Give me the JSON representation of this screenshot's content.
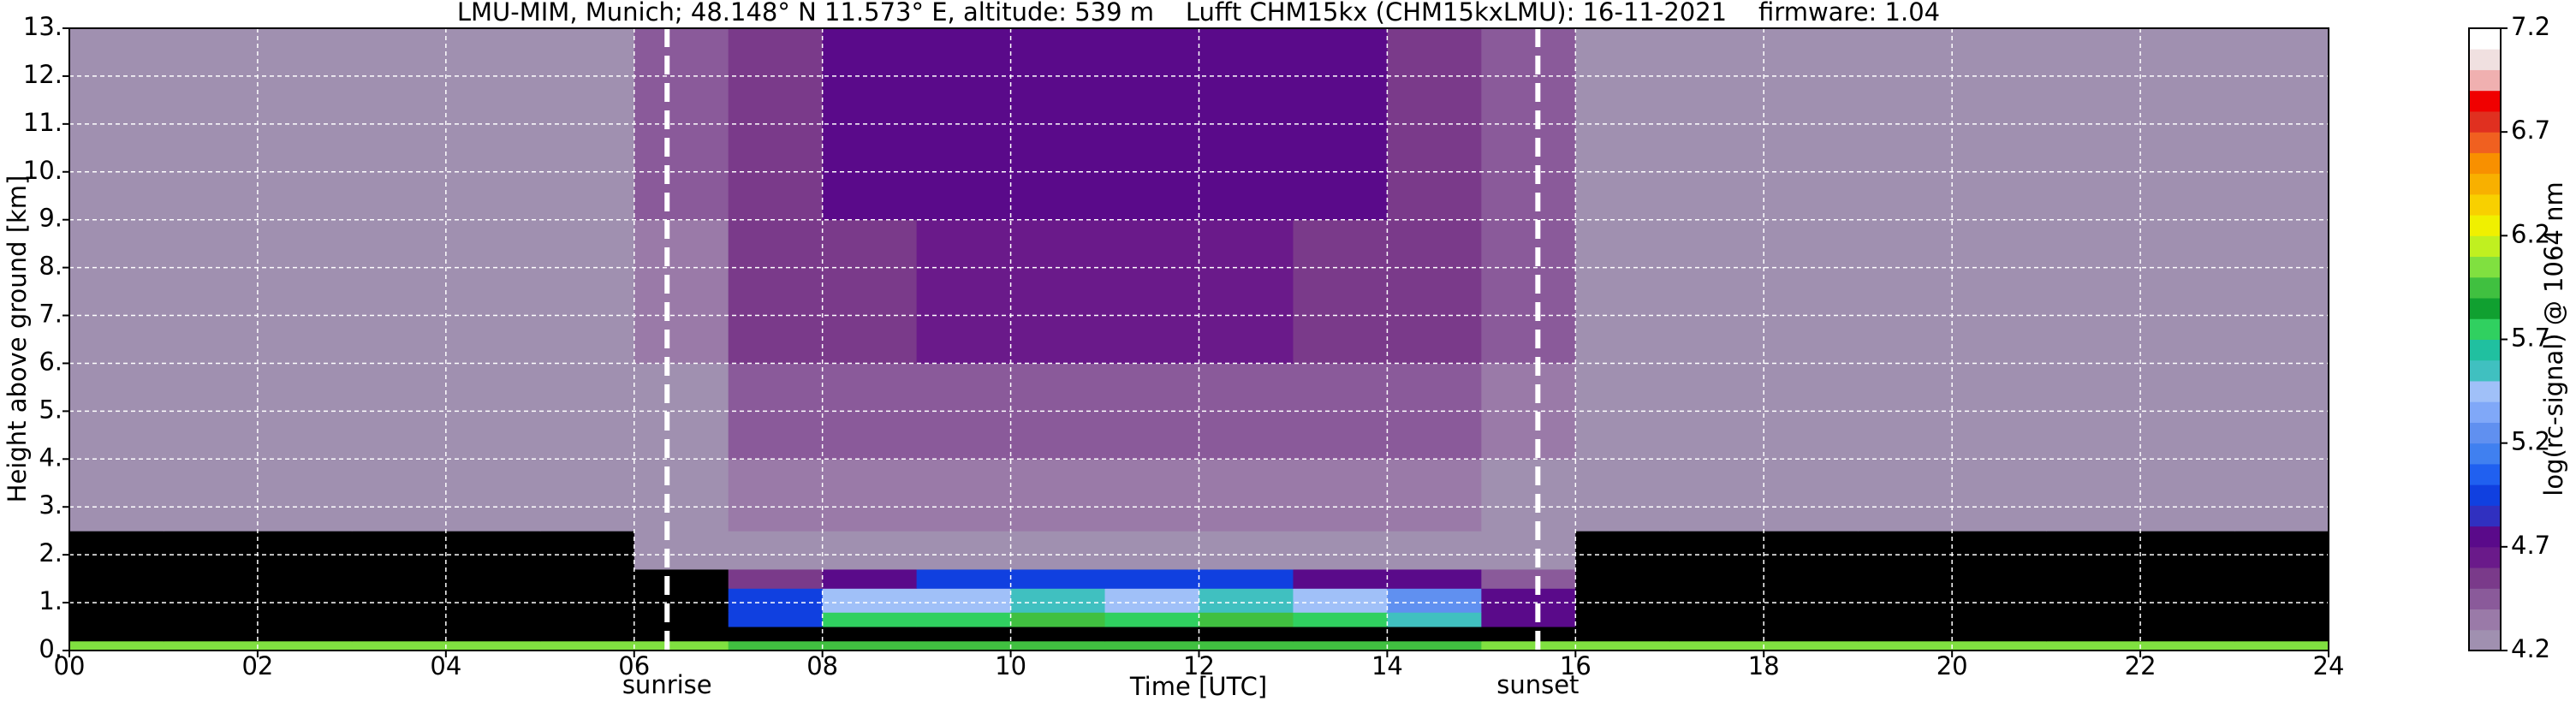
{
  "chart_data": {
    "type": "heatmap",
    "title": "LMU-MIM, Munich; 48.148° N 11.573° E, altitude: 539 m    Lufft CHM15kx (CHM15kxLMU): 16-11-2021    firmware: 1.04",
    "xlabel": "Time [UTC]",
    "ylabel": "Height above ground [km]",
    "colorbar_label": "log(rc-signal) @ 1064 nm",
    "xlim": [
      0,
      24
    ],
    "ylim": [
      0,
      13
    ],
    "xticks": [
      {
        "value": 0,
        "label": "00"
      },
      {
        "value": 2,
        "label": "02"
      },
      {
        "value": 4,
        "label": "04"
      },
      {
        "value": 6,
        "label": "06"
      },
      {
        "value": 8,
        "label": "08"
      },
      {
        "value": 10,
        "label": "10"
      },
      {
        "value": 12,
        "label": "12"
      },
      {
        "value": 14,
        "label": "14"
      },
      {
        "value": 16,
        "label": "16"
      },
      {
        "value": 18,
        "label": "18"
      },
      {
        "value": 20,
        "label": "20"
      },
      {
        "value": 22,
        "label": "22"
      },
      {
        "value": 24,
        "label": "24"
      }
    ],
    "yticks": [
      {
        "value": 0,
        "label": "0."
      },
      {
        "value": 1,
        "label": "1."
      },
      {
        "value": 2,
        "label": "2."
      },
      {
        "value": 3,
        "label": "3."
      },
      {
        "value": 4,
        "label": "4."
      },
      {
        "value": 5,
        "label": "5."
      },
      {
        "value": 6,
        "label": "6."
      },
      {
        "value": 7,
        "label": "7."
      },
      {
        "value": 8,
        "label": "8."
      },
      {
        "value": 9,
        "label": "9."
      },
      {
        "value": 10,
        "label": "10."
      },
      {
        "value": 11,
        "label": "11."
      },
      {
        "value": 12,
        "label": "12."
      },
      {
        "value": 13,
        "label": "13."
      }
    ],
    "grid": true,
    "grid_color": "#ffffff",
    "x_edges": [
      0,
      1,
      2,
      3,
      4,
      5,
      6,
      7,
      8,
      9,
      10,
      11,
      12,
      13,
      14,
      15,
      16,
      17,
      18,
      19,
      20,
      21,
      22,
      23,
      24
    ],
    "y_edges": [
      0,
      0.2,
      0.5,
      0.8,
      1.3,
      1.7,
      2.5,
      4,
      6,
      9,
      13
    ],
    "values": [
      [
        6.0,
        6.0,
        6.0,
        6.0,
        6.0,
        6.0,
        6.0,
        5.9,
        5.9,
        5.9,
        5.9,
        5.9,
        5.9,
        5.9,
        5.9,
        6.0,
        6.0,
        6.0,
        6.0,
        6.0,
        6.0,
        6.0,
        6.1,
        6.1
      ],
      [
        4.0,
        4.0,
        4.0,
        4.0,
        4.0,
        4.0,
        4.0,
        4.0,
        4.0,
        4.0,
        4.0,
        4.0,
        4.0,
        4.0,
        4.0,
        4.0,
        4.0,
        4.0,
        4.0,
        4.0,
        4.0,
        4.0,
        4.0,
        4.0
      ],
      [
        4.0,
        4.0,
        4.0,
        4.0,
        4.0,
        4.0,
        4.1,
        5.0,
        5.7,
        5.8,
        5.9,
        5.8,
        5.9,
        5.8,
        5.6,
        4.8,
        4.0,
        4.0,
        4.0,
        4.0,
        4.0,
        4.0,
        4.0,
        4.0
      ],
      [
        4.0,
        4.0,
        4.0,
        4.0,
        4.0,
        4.0,
        4.1,
        4.9,
        5.4,
        5.5,
        5.6,
        5.5,
        5.6,
        5.5,
        5.3,
        4.8,
        4.0,
        4.0,
        4.0,
        4.0,
        4.0,
        4.0,
        4.0,
        4.0
      ],
      [
        4.0,
        4.0,
        4.0,
        4.0,
        4.0,
        4.0,
        4.1,
        4.6,
        4.8,
        4.9,
        5.0,
        4.9,
        4.9,
        4.8,
        4.7,
        4.5,
        4.0,
        4.0,
        4.0,
        4.0,
        4.0,
        4.0,
        4.0,
        4.0
      ],
      [
        4.1,
        4.1,
        4.1,
        4.1,
        4.1,
        4.1,
        4.2,
        4.3,
        4.3,
        4.3,
        4.3,
        4.3,
        4.3,
        4.3,
        4.3,
        4.3,
        4.1,
        4.1,
        4.1,
        4.1,
        4.1,
        4.1,
        4.1,
        4.1
      ],
      [
        4.2,
        4.2,
        4.2,
        4.2,
        4.2,
        4.2,
        4.3,
        4.35,
        4.35,
        4.35,
        4.35,
        4.35,
        4.35,
        4.35,
        4.35,
        4.3,
        4.2,
        4.2,
        4.2,
        4.2,
        4.2,
        4.2,
        4.2,
        4.2
      ],
      [
        4.25,
        4.25,
        4.25,
        4.25,
        4.25,
        4.25,
        4.3,
        4.45,
        4.5,
        4.5,
        4.5,
        4.5,
        4.5,
        4.5,
        4.45,
        4.35,
        4.25,
        4.25,
        4.25,
        4.25,
        4.25,
        4.25,
        4.25,
        4.25
      ],
      [
        4.3,
        4.3,
        4.3,
        4.3,
        4.3,
        4.3,
        4.35,
        4.55,
        4.6,
        4.65,
        4.65,
        4.65,
        4.65,
        4.6,
        4.55,
        4.4,
        4.3,
        4.3,
        4.3,
        4.3,
        4.3,
        4.3,
        4.3,
        4.3
      ],
      [
        4.3,
        4.3,
        4.3,
        4.3,
        4.3,
        4.3,
        4.4,
        4.6,
        4.7,
        4.75,
        4.75,
        4.75,
        4.75,
        4.7,
        4.6,
        4.45,
        4.3,
        4.3,
        4.3,
        4.3,
        4.3,
        4.3,
        4.3,
        4.3
      ]
    ],
    "colorbar": {
      "clim": [
        4.2,
        7.2
      ],
      "ticks": [
        4.2,
        4.7,
        5.2,
        5.7,
        6.2,
        6.7,
        7.2
      ],
      "below_color": "#000000",
      "colors": [
        "#a090b0",
        "#9a7aa8",
        "#8a5a9a",
        "#7a3a8a",
        "#6a1a8a",
        "#5a0a8a",
        "#3030c0",
        "#1040e0",
        "#2060f0",
        "#4080f0",
        "#6090f0",
        "#80a8f8",
        "#a0c0f8",
        "#40c0c0",
        "#20c0a0",
        "#30d060",
        "#10a030",
        "#40c040",
        "#80e040",
        "#c0f020",
        "#f0f000",
        "#f8d000",
        "#f8b000",
        "#f89000",
        "#f06020",
        "#e03020",
        "#f00000",
        "#f0b0b0",
        "#f0e0e0",
        "#ffffff"
      ]
    },
    "annotations": [
      {
        "text": "sunrise",
        "x": 6.35
      },
      {
        "text": "sunset",
        "x": 15.6
      }
    ]
  }
}
